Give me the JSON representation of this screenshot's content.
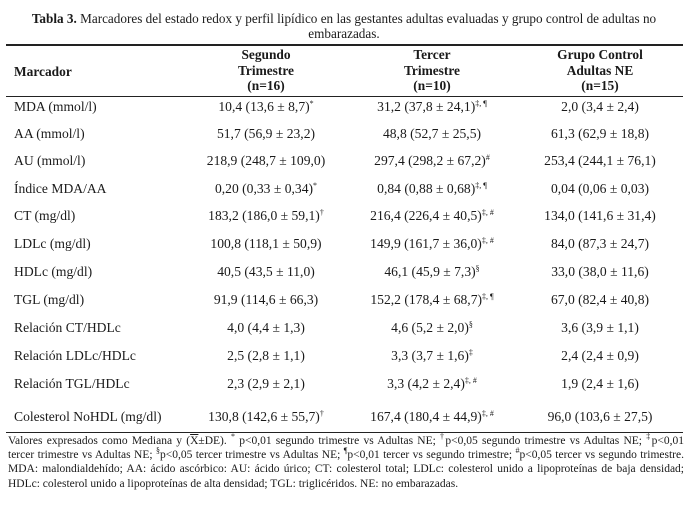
{
  "caption": {
    "label": "Tabla 3.",
    "text": "Marcadores del estado redox y perfil lipídico en las gestantes adultas evaluadas y grupo control de adultas no embarazadas."
  },
  "table": {
    "headers": {
      "marcador": "Marcador",
      "col1": [
        "Segundo",
        "Trimestre",
        "(n=16)"
      ],
      "col2": [
        "Tercer",
        "Trimestre",
        "(n=10)"
      ],
      "col3": [
        "Grupo Control",
        "Adultas NE",
        "(n=15)"
      ]
    },
    "rows": [
      {
        "label": "MDA (mmol/l)",
        "c1": "10,4 (13,6 ± 8,7)",
        "c1_sup": "*",
        "c2": "31,2 (37,8 ± 24,1)",
        "c2_sup": "‡, ¶",
        "c3": "2,0 (3,4 ± 2,4)",
        "c3_sup": ""
      },
      {
        "label": "AA (mmol/l)",
        "c1": "51,7 (56,9 ± 23,2)",
        "c1_sup": "",
        "c2": "48,8 (52,7 ± 25,5)",
        "c2_sup": "",
        "c3": "61,3 (62,9 ± 18,8)",
        "c3_sup": ""
      },
      {
        "label": "AU (mmol/l)",
        "c1": "218,9 (248,7 ± 109,0)",
        "c1_sup": "",
        "c2": "297,4 (298,2 ± 67,2)",
        "c2_sup": "#",
        "c3": "253,4 (244,1 ± 76,1)",
        "c3_sup": ""
      },
      {
        "label": "Índice MDA/AA",
        "c1": "0,20 (0,33 ± 0,34)",
        "c1_sup": "*",
        "c2": "0,84 (0,88 ± 0,68)",
        "c2_sup": "‡, ¶",
        "c3": "0,04 (0,06 ± 0,03)",
        "c3_sup": ""
      },
      {
        "label": "CT (mg/dl)",
        "c1": "183,2 (186,0 ± 59,1)",
        "c1_sup": "†",
        "c2": "216,4 (226,4 ± 40,5)",
        "c2_sup": "‡, #",
        "c3": "134,0 (141,6 ± 31,4)",
        "c3_sup": ""
      },
      {
        "label": "LDLc (mg/dl)",
        "c1": "100,8 (118,1 ± 50,9)",
        "c1_sup": "",
        "c2": "149,9 (161,7 ± 36,0)",
        "c2_sup": "‡, #",
        "c3": "84,0 (87,3 ± 24,7)",
        "c3_sup": ""
      },
      {
        "label": "HDLc (mg/dl)",
        "c1": "40,5 (43,5 ± 11,0)",
        "c1_sup": "",
        "c2": "46,1 (45,9 ± 7,3)",
        "c2_sup": "§",
        "c3": "33,0 (38,0 ± 11,6)",
        "c3_sup": ""
      },
      {
        "label": "TGL (mg/dl)",
        "c1": "91,9 (114,6 ± 66,3)",
        "c1_sup": "",
        "c2": "152,2 (178,4 ± 68,7)",
        "c2_sup": "‡, ¶",
        "c3": "67,0 (82,4 ± 40,8)",
        "c3_sup": ""
      },
      {
        "label": "Relación CT/HDLc",
        "c1": "4,0 (4,4 ± 1,3)",
        "c1_sup": "",
        "c2": "4,6 (5,2 ± 2,0)",
        "c2_sup": "§",
        "c3": "3,6 (3,9 ± 1,1)",
        "c3_sup": ""
      },
      {
        "label": "Relación LDLc/HDLc",
        "c1": "2,5 (2,8 ± 1,1)",
        "c1_sup": "",
        "c2": "3,3 (3,7 ± 1,6)",
        "c2_sup": "‡",
        "c3": "2,4 (2,4 ± 0,9)",
        "c3_sup": ""
      },
      {
        "label": "Relación TGL/HDLc",
        "c1": "2,3 (2,9 ± 2,1)",
        "c1_sup": "",
        "c2": "3,3 (4,2 ± 2,4)",
        "c2_sup": "‡, #",
        "c3": "1,9 (2,4 ± 1,6)",
        "c3_sup": ""
      },
      {
        "label": "Colesterol NoHDL (mg/dl)",
        "c1": "130,8 (142,6 ± 55,7)",
        "c1_sup": "†",
        "c2": "167,4 (180,4 ± 44,9)",
        "c2_sup": "‡, #",
        "c3": "96,0 (103,6 ± 27,5)",
        "c3_sup": ""
      }
    ]
  },
  "notes": {
    "p1": "Valores expresados como Mediana y (",
    "xbar": "X",
    "p2": "±DE). ",
    "s1": "*",
    "t1": " p<0,01 segundo trimestre vs Adultas NE; ",
    "s2": "†",
    "t2": "p<0,05 segundo trimestre vs Adultas NE; ",
    "s3": "‡",
    "t3": "p<0,01 tercer trimestre vs Adultas NE; ",
    "s4": "§",
    "t4": "p<0,05 tercer trimestre vs Adultas NE; ",
    "s5": "¶",
    "t5": "p<0,01 tercer vs segundo trimestre; ",
    "s6": "#",
    "t6": "p<0,05 tercer vs segundo trimestre. MDA: malondialdehído; AA: ácido ascórbico: AU: ácido úrico; CT: colesterol total; LDLc: colesterol unido a lipoproteínas de baja densidad; HDLc: colesterol unido a lipoproteínas de alta densidad; TGL: triglicéridos. NE: no embarazadas."
  }
}
